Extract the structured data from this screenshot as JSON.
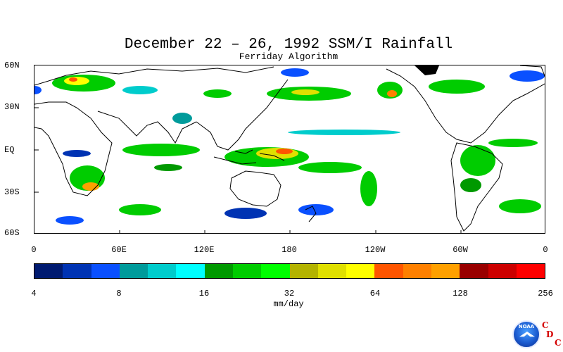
{
  "header": {
    "title": "December 22 – 26, 1992 SSM/I Rainfall",
    "subtitle": "Ferriday Algorithm"
  },
  "map": {
    "lat_labels": [
      "60N",
      "30N",
      "EQ",
      "30S",
      "60S"
    ],
    "lon_labels": [
      "0",
      "60E",
      "120E",
      "180",
      "120W",
      "60W",
      "0"
    ]
  },
  "colorbar": {
    "colors": [
      "#001a70",
      "#0033b3",
      "#0a50ff",
      "#009b9b",
      "#00cccc",
      "#00ffff",
      "#009900",
      "#00cc00",
      "#00ff00",
      "#b3b300",
      "#e0e000",
      "#ffff00",
      "#ff5500",
      "#ff8000",
      "#ffa000",
      "#990000",
      "#cc0000",
      "#ff0000"
    ],
    "tick_labels": [
      "4",
      "8",
      "16",
      "32",
      "64",
      "128",
      "256"
    ],
    "units": "mm/day"
  },
  "logo": {
    "noaa_text": "NOAA",
    "cdc_letters": [
      "C",
      "D",
      "C"
    ]
  }
}
